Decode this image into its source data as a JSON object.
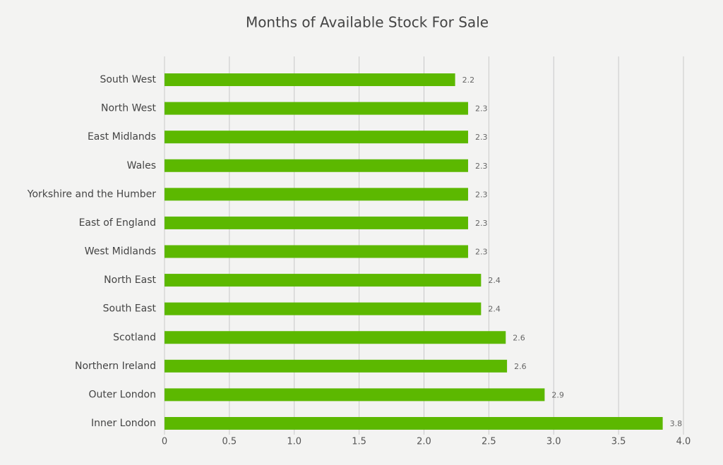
{
  "chart_data": {
    "type": "barh",
    "title": "Months of Available Stock For Sale",
    "categories": [
      "South West",
      "North West",
      "East Midlands",
      "Wales",
      "Yorkshire and the Humber",
      "East of England",
      "West Midlands",
      "North East",
      "South East",
      "Scotland",
      "Northern Ireland",
      "Outer London",
      "Inner London"
    ],
    "values": [
      2.24,
      2.34,
      2.34,
      2.34,
      2.34,
      2.34,
      2.34,
      2.44,
      2.44,
      2.63,
      2.64,
      2.93,
      3.84
    ],
    "value_labels": [
      "2.2",
      "2.3",
      "2.3",
      "2.3",
      "2.3",
      "2.3",
      "2.3",
      "2.4",
      "2.4",
      "2.6",
      "2.6",
      "2.9",
      "3.8"
    ],
    "color": "#5cb800",
    "xlim": [
      0,
      4
    ],
    "xticks": [
      0,
      0.5,
      {
        "value": 1,
        "label": "1.0"
      },
      1.5,
      {
        "value": 2,
        "label": "2.0"
      },
      2.5,
      {
        "value": 3,
        "label": "3.0"
      },
      3.5,
      {
        "value": 4,
        "label": "4.0"
      }
    ],
    "grid": true
  }
}
